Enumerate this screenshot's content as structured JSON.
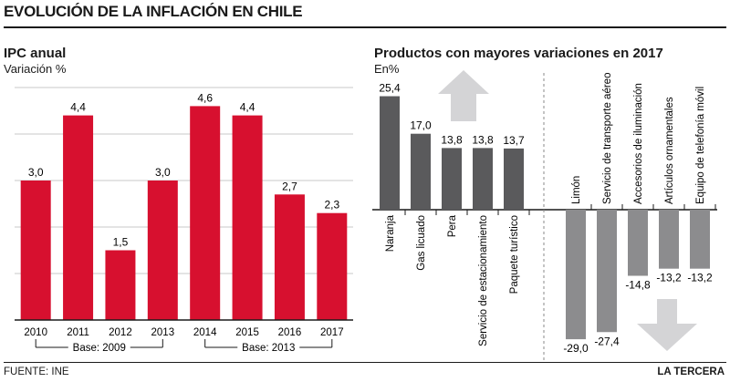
{
  "header": {
    "title": "EVOLUCIÓN DE LA INFLACIÓN EN CHILE"
  },
  "footer": {
    "source": "FUENTE: INE",
    "brand": "LA TERCERA"
  },
  "colors": {
    "red": "#d7102f",
    "dark_gray": "#5a5a5c",
    "mid_gray": "#8c8c8e",
    "arrow_gray": "#d4d4d6"
  },
  "chart_data": [
    {
      "type": "bar",
      "title": "IPC anual",
      "ylabel": "Variación %",
      "categories": [
        "2010",
        "2011",
        "2012",
        "2013",
        "2014",
        "2015",
        "2016",
        "2017"
      ],
      "values": [
        3.0,
        4.4,
        1.5,
        3.0,
        4.6,
        4.4,
        2.7,
        2.3
      ],
      "value_labels": [
        "3,0",
        "4,4",
        "1,5",
        "3,0",
        "4,6",
        "4,4",
        "2,7",
        "2,3"
      ],
      "ylim": [
        0,
        5
      ],
      "grid": true,
      "groups": [
        {
          "label": "Base: 2009",
          "categories": [
            "2010",
            "2011",
            "2012",
            "2013"
          ]
        },
        {
          "label": "Base: 2013",
          "categories": [
            "2014",
            "2015",
            "2016",
            "2017"
          ]
        }
      ]
    },
    {
      "type": "bar",
      "title": "Productos con mayores variaciones en 2017",
      "ylabel": "En%",
      "categories": [
        "Naranja",
        "Gas licuado",
        "Pera",
        "Servicio de estacionamiento",
        "Paquete turístico",
        "Limón",
        "Servicio de transporte aéreo",
        "Accesorios de iluminación",
        "Artículos ornamentales",
        "Equipo de telefonía móvil"
      ],
      "values": [
        25.4,
        17.0,
        13.8,
        13.8,
        13.7,
        -29.0,
        -27.4,
        -14.8,
        -13.2,
        -13.2
      ],
      "value_labels": [
        "25,4",
        "17,0",
        "13,8",
        "13,8",
        "13,7",
        "-29,0",
        "-27,4",
        "-14,8",
        "-13,2",
        "-13,2"
      ],
      "grid": false
    }
  ]
}
